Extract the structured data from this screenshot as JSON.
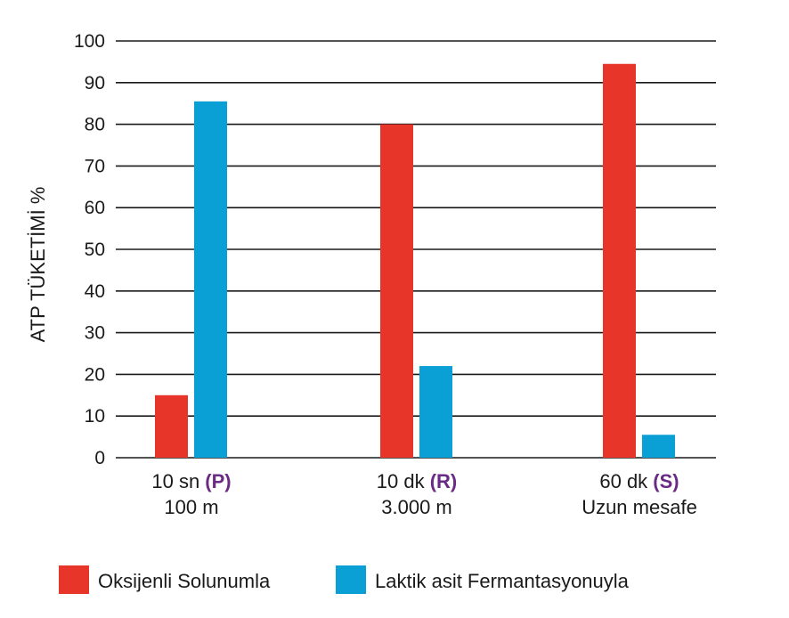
{
  "chart_data": {
    "type": "bar",
    "ylabel": "ATP TÜKETİMİ %",
    "xlabel": "",
    "ylim": [
      0,
      100
    ],
    "yticks": [
      0,
      10,
      20,
      30,
      40,
      50,
      60,
      70,
      80,
      90,
      100
    ],
    "grid": true,
    "legend_position": "bottom",
    "categories": [
      {
        "line1": "10 sn",
        "code": "(P)",
        "line2": "100 m"
      },
      {
        "line1": "10 dk",
        "code": "(R)",
        "line2": "3.000 m"
      },
      {
        "line1": "60 dk",
        "code": "(S)",
        "line2": "Uzun mesafe"
      }
    ],
    "series": [
      {
        "name": "Oksijenli Solunumla",
        "color": "#e8352a",
        "values": [
          15,
          80,
          94.5
        ]
      },
      {
        "name": "Laktik asit Fermantasyonuyla",
        "color": "#0aa0d6",
        "values": [
          85.5,
          22,
          5.5
        ]
      }
    ],
    "code_color": "#6b2a83"
  }
}
